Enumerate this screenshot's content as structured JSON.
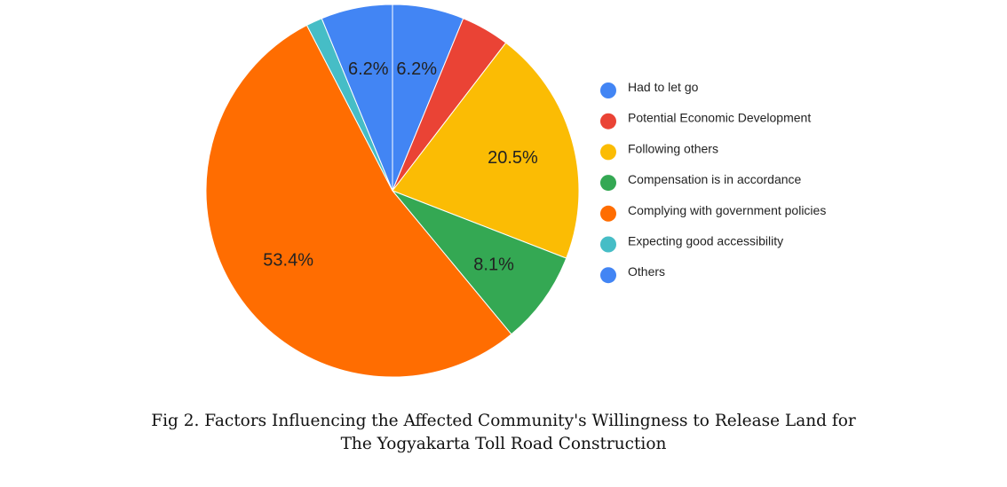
{
  "chart_data": {
    "type": "pie",
    "title": "",
    "slices": [
      {
        "label": "Had to let go",
        "value": 6.2,
        "display": "6.2%",
        "color": "#4285F4"
      },
      {
        "label": "Potential Economic Development",
        "value": 4.2,
        "display": "",
        "color": "#EA4335"
      },
      {
        "label": "Following others",
        "value": 20.5,
        "display": "20.5%",
        "color": "#FBBC04"
      },
      {
        "label": "Compensation is in accordance",
        "value": 8.1,
        "display": "8.1%",
        "color": "#34A853"
      },
      {
        "label": "Complying with government policies",
        "value": 53.4,
        "display": "53.4%",
        "color": "#FF6D01"
      },
      {
        "label": "Expecting good accessibility",
        "value": 1.4,
        "display": "",
        "color": "#46BDC6"
      },
      {
        "label": "Others",
        "value": 6.2,
        "display": "6.2%",
        "color": "#4285F4"
      }
    ],
    "legend_position": "right"
  },
  "caption": {
    "line1": "Fig 2. Factors Influencing the Affected Community's Willingness to Release Land for",
    "line2": "The Yogyakarta Toll Road Construction"
  }
}
